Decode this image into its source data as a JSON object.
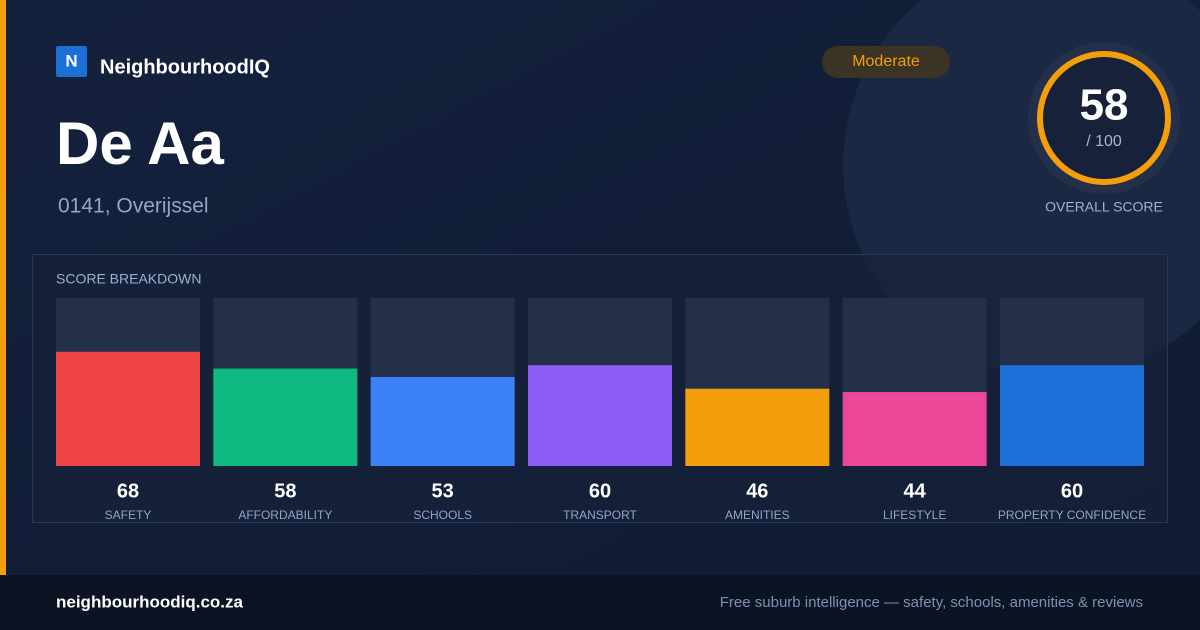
{
  "brand": {
    "logo_letter": "N",
    "name": "NeighbourhoodIQ"
  },
  "badge": "Moderate",
  "title": "De Aa",
  "location": "0141, Overijssel",
  "score": {
    "value": 58,
    "max_label": "/ 100",
    "label": "OVERALL SCORE"
  },
  "chart_data": {
    "type": "bar",
    "title": "SCORE BREAKDOWN",
    "categories": [
      "SAFETY",
      "AFFORDABILITY",
      "SCHOOLS",
      "TRANSPORT",
      "AMENITIES",
      "LIFESTYLE",
      "PROPERTY CONFIDENCE"
    ],
    "values": [
      68,
      58,
      53,
      60,
      46,
      44,
      60
    ],
    "colors": [
      "#ef4444",
      "#10b981",
      "#3b82f6",
      "#8b5cf6",
      "#f59e0b",
      "#ec4899",
      "#1d6fd8"
    ],
    "ylim": [
      0,
      100
    ]
  },
  "footer": {
    "site": "neighbourhoodiq.co.za",
    "tagline": "Free suburb intelligence — safety, schools, amenities & reviews"
  }
}
